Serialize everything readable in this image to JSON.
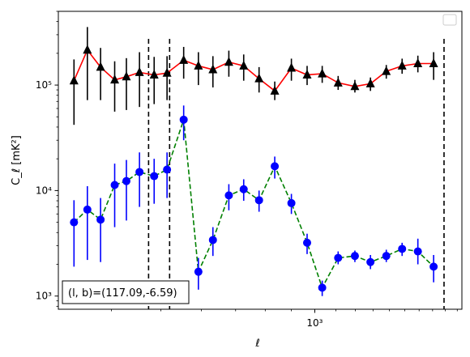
{
  "chart_data": {
    "type": "scatter",
    "xscale": "log",
    "yscale": "log",
    "xlim": [
      315,
      1940
    ],
    "ylim": [
      750,
      500000
    ],
    "xlabel": "ℓ",
    "ylabel": "C_ℓ  [mK²]",
    "x_major_ticks": [
      {
        "value": 1000,
        "label": "10³"
      }
    ],
    "y_major_ticks": [
      {
        "value": 1000,
        "label": "10³"
      },
      {
        "value": 10000,
        "label": "10⁴"
      },
      {
        "value": 100000,
        "label": "10⁵"
      }
    ],
    "annotation": "(l, b)=(117.09,-6.59)",
    "legend": {
      "placement": "top-right",
      "entries": []
    },
    "vlines": [
      473,
      520,
      1790
    ],
    "series": [
      {
        "marker": "triangle",
        "line_style": "solid",
        "line_color": "#ff0000",
        "marker_color": "#000000",
        "errorbar_color": "#000000",
        "points": [
          {
            "x": 338,
            "y": 110000,
            "ylo": 42000,
            "yhi": 175000
          },
          {
            "x": 359,
            "y": 215000,
            "ylo": 72000,
            "yhi": 355000
          },
          {
            "x": 381,
            "y": 148000,
            "ylo": 72000,
            "yhi": 225000
          },
          {
            "x": 406,
            "y": 112000,
            "ylo": 56000,
            "yhi": 168000
          },
          {
            "x": 428,
            "y": 120000,
            "ylo": 58000,
            "yhi": 180000
          },
          {
            "x": 454,
            "y": 132000,
            "ylo": 62000,
            "yhi": 205000
          },
          {
            "x": 485,
            "y": 125000,
            "ylo": 66000,
            "yhi": 185000
          },
          {
            "x": 514,
            "y": 130000,
            "ylo": 72000,
            "yhi": 188000
          },
          {
            "x": 554,
            "y": 172000,
            "ylo": 115000,
            "yhi": 230000
          },
          {
            "x": 592,
            "y": 152000,
            "ylo": 100000,
            "yhi": 205000
          },
          {
            "x": 632,
            "y": 140000,
            "ylo": 95000,
            "yhi": 188000
          },
          {
            "x": 679,
            "y": 165000,
            "ylo": 120000,
            "yhi": 212000
          },
          {
            "x": 726,
            "y": 152000,
            "ylo": 110000,
            "yhi": 195000
          },
          {
            "x": 778,
            "y": 115000,
            "ylo": 85000,
            "yhi": 148000
          },
          {
            "x": 835,
            "y": 88000,
            "ylo": 72000,
            "yhi": 108000
          },
          {
            "x": 900,
            "y": 145000,
            "ylo": 110000,
            "yhi": 178000
          },
          {
            "x": 966,
            "y": 125000,
            "ylo": 100000,
            "yhi": 152000
          },
          {
            "x": 1034,
            "y": 128000,
            "ylo": 105000,
            "yhi": 152000
          },
          {
            "x": 1111,
            "y": 105000,
            "ylo": 90000,
            "yhi": 122000
          },
          {
            "x": 1198,
            "y": 97000,
            "ylo": 85000,
            "yhi": 112000
          },
          {
            "x": 1285,
            "y": 103000,
            "ylo": 88000,
            "yhi": 118000
          },
          {
            "x": 1380,
            "y": 135000,
            "ylo": 115000,
            "yhi": 155000
          },
          {
            "x": 1482,
            "y": 152000,
            "ylo": 128000,
            "yhi": 178000
          },
          {
            "x": 1591,
            "y": 160000,
            "ylo": 132000,
            "yhi": 190000
          },
          {
            "x": 1708,
            "y": 160000,
            "ylo": 112000,
            "yhi": 205000
          }
        ]
      },
      {
        "marker": "circle",
        "line_style": "dashed",
        "line_color": "#008000",
        "marker_color": "#0000ff",
        "errorbar_color": "#0000ff",
        "points": [
          {
            "x": 338,
            "y": 5000,
            "ylo": 1900,
            "yhi": 8100
          },
          {
            "x": 359,
            "y": 6600,
            "ylo": 2200,
            "yhi": 11000
          },
          {
            "x": 381,
            "y": 5300,
            "ylo": 2100,
            "yhi": 8500
          },
          {
            "x": 406,
            "y": 11300,
            "ylo": 4500,
            "yhi": 18000
          },
          {
            "x": 428,
            "y": 12300,
            "ylo": 5200,
            "yhi": 19500
          },
          {
            "x": 454,
            "y": 15000,
            "ylo": 7000,
            "yhi": 23000
          },
          {
            "x": 485,
            "y": 13700,
            "ylo": 7500,
            "yhi": 20000
          },
          {
            "x": 514,
            "y": 15800,
            "ylo": 8500,
            "yhi": 23000
          },
          {
            "x": 554,
            "y": 47000,
            "ylo": 30000,
            "yhi": 64000
          },
          {
            "x": 592,
            "y": 1700,
            "ylo": 1150,
            "yhi": 2300
          },
          {
            "x": 632,
            "y": 3400,
            "ylo": 2400,
            "yhi": 4500
          },
          {
            "x": 679,
            "y": 9000,
            "ylo": 6500,
            "yhi": 11500
          },
          {
            "x": 726,
            "y": 10300,
            "ylo": 8000,
            "yhi": 12800
          },
          {
            "x": 778,
            "y": 8100,
            "ylo": 6300,
            "yhi": 10000
          },
          {
            "x": 835,
            "y": 17000,
            "ylo": 13000,
            "yhi": 21000
          },
          {
            "x": 900,
            "y": 7600,
            "ylo": 6000,
            "yhi": 9300
          },
          {
            "x": 966,
            "y": 3200,
            "ylo": 2500,
            "yhi": 3900
          },
          {
            "x": 1034,
            "y": 1200,
            "ylo": 1000,
            "yhi": 1400
          },
          {
            "x": 1111,
            "y": 2300,
            "ylo": 2000,
            "yhi": 2650
          },
          {
            "x": 1198,
            "y": 2400,
            "ylo": 2100,
            "yhi": 2700
          },
          {
            "x": 1285,
            "y": 2100,
            "ylo": 1800,
            "yhi": 2450
          },
          {
            "x": 1380,
            "y": 2400,
            "ylo": 2100,
            "yhi": 2750
          },
          {
            "x": 1482,
            "y": 2800,
            "ylo": 2400,
            "yhi": 3200
          },
          {
            "x": 1591,
            "y": 2650,
            "ylo": 2000,
            "yhi": 3500
          },
          {
            "x": 1708,
            "y": 1900,
            "ylo": 1350,
            "yhi": 2450
          }
        ]
      }
    ]
  }
}
